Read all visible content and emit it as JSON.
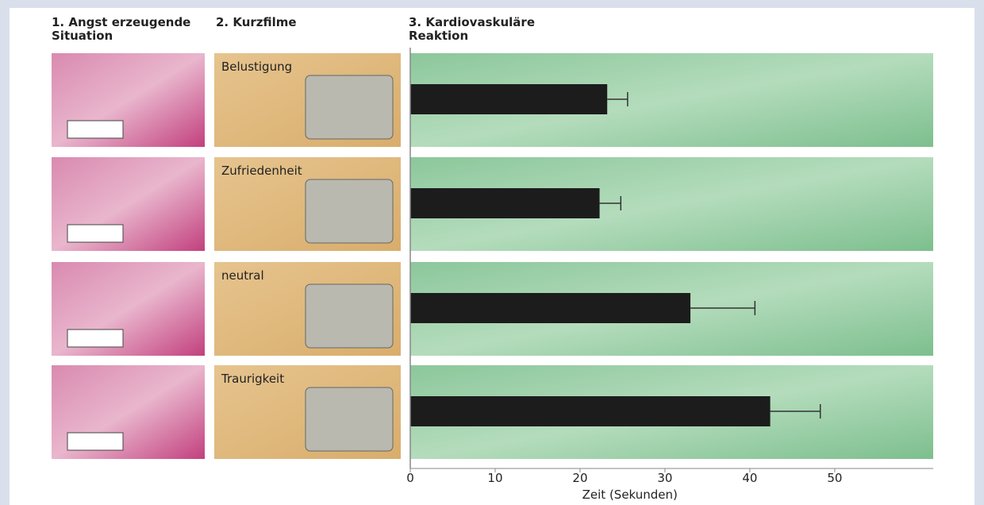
{
  "headers": [
    "1. Angst erzeugende\nSituation",
    "2. Kurzfilme",
    "3. Kardiovaskuläre\nReaktion"
  ],
  "chart_data": {
    "type": "hbar",
    "categories": [
      "Belustigung",
      "Zufriedenheit",
      "neutral",
      "Traurigkeit"
    ],
    "values": [
      23.2,
      22.3,
      33.0,
      42.4
    ],
    "errors": [
      2.4,
      2.5,
      7.6,
      5.9
    ],
    "color": "#1c1c1c",
    "xlim": [
      0,
      61.6
    ],
    "xticks": [
      0,
      10,
      20,
      30,
      40,
      50
    ],
    "xlabel": "Zeit (Sekunden)"
  }
}
